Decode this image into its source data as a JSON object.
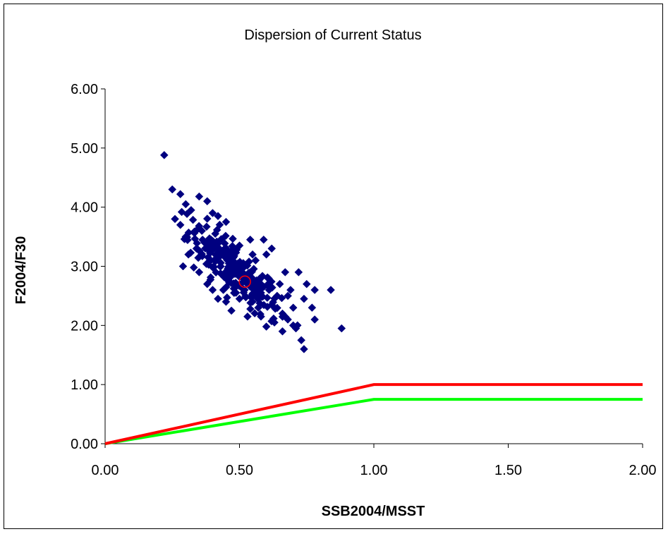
{
  "chart_data": {
    "type": "scatter",
    "title": "Dispersion of Current Status",
    "xlabel": "SSB2004/MSST",
    "ylabel": "F2004/F30",
    "xlim": [
      0,
      2
    ],
    "ylim": [
      0,
      6
    ],
    "x_ticks": [
      "0.00",
      "0.50",
      "1.00",
      "1.50",
      "2.00"
    ],
    "y_ticks": [
      "0.00",
      "1.00",
      "2.00",
      "3.00",
      "4.00",
      "5.00",
      "6.00"
    ],
    "grid": false,
    "legend": "none",
    "colors": {
      "points": "#000080",
      "center": "#ff0000",
      "limit_line": "#ff0000",
      "target_line": "#00ff00"
    },
    "series": [
      {
        "kind": "scatter",
        "marker": "diamond",
        "cluster_summary": {
          "count": 300,
          "center": [
            0.48,
            2.95
          ],
          "x_range": [
            0.22,
            0.88
          ],
          "y_range": [
            1.6,
            4.88
          ]
        },
        "points": [
          [
            0.22,
            4.88
          ],
          [
            0.25,
            4.3
          ],
          [
            0.28,
            4.22
          ],
          [
            0.26,
            3.8
          ],
          [
            0.3,
            4.05
          ],
          [
            0.35,
            4.18
          ],
          [
            0.32,
            3.95
          ],
          [
            0.38,
            4.1
          ],
          [
            0.4,
            3.9
          ],
          [
            0.42,
            3.85
          ],
          [
            0.45,
            3.75
          ],
          [
            0.3,
            3.5
          ],
          [
            0.28,
            3.7
          ],
          [
            0.31,
            3.2
          ],
          [
            0.29,
            3.0
          ],
          [
            0.33,
            2.98
          ],
          [
            0.34,
            3.3
          ],
          [
            0.36,
            3.6
          ],
          [
            0.37,
            3.4
          ],
          [
            0.39,
            3.1
          ],
          [
            0.41,
            3.55
          ],
          [
            0.43,
            3.0
          ],
          [
            0.44,
            2.6
          ],
          [
            0.46,
            3.2
          ],
          [
            0.47,
            2.9
          ],
          [
            0.48,
            2.55
          ],
          [
            0.5,
            3.35
          ],
          [
            0.5,
            2.45
          ],
          [
            0.52,
            3.0
          ],
          [
            0.54,
            3.45
          ],
          [
            0.55,
            2.5
          ],
          [
            0.56,
            3.1
          ],
          [
            0.57,
            2.3
          ],
          [
            0.58,
            2.8
          ],
          [
            0.59,
            3.45
          ],
          [
            0.6,
            3.2
          ],
          [
            0.61,
            2.6
          ],
          [
            0.62,
            3.3
          ],
          [
            0.63,
            2.05
          ],
          [
            0.64,
            2.5
          ],
          [
            0.65,
            2.7
          ],
          [
            0.66,
            2.2
          ],
          [
            0.67,
            2.9
          ],
          [
            0.68,
            2.1
          ],
          [
            0.69,
            2.6
          ],
          [
            0.7,
            2.3
          ],
          [
            0.71,
            1.95
          ],
          [
            0.72,
            2.9
          ],
          [
            0.73,
            1.75
          ],
          [
            0.74,
            1.6
          ],
          [
            0.74,
            2.45
          ],
          [
            0.75,
            2.7
          ],
          [
            0.77,
            2.3
          ],
          [
            0.78,
            2.6
          ],
          [
            0.78,
            2.1
          ],
          [
            0.84,
            2.6
          ],
          [
            0.88,
            1.95
          ],
          [
            0.7,
            2.0
          ],
          [
            0.66,
            1.9
          ],
          [
            0.6,
            1.98
          ],
          [
            0.53,
            2.15
          ],
          [
            0.47,
            2.25
          ],
          [
            0.42,
            2.45
          ],
          [
            0.38,
            2.7
          ],
          [
            0.35,
            2.9
          ],
          [
            0.4,
            2.6
          ],
          [
            0.45,
            2.4
          ],
          [
            0.58,
            2.15
          ],
          [
            0.62,
            2.35
          ],
          [
            0.68,
            2.5
          ]
        ]
      },
      {
        "kind": "marker",
        "marker": "open-circle",
        "points": [
          [
            0.52,
            2.74
          ]
        ]
      },
      {
        "kind": "line",
        "points": [
          [
            0,
            0
          ],
          [
            1,
            1
          ],
          [
            2,
            1
          ]
        ]
      },
      {
        "kind": "line",
        "points": [
          [
            0,
            0
          ],
          [
            1,
            0.75
          ],
          [
            2,
            0.75
          ]
        ]
      }
    ]
  }
}
